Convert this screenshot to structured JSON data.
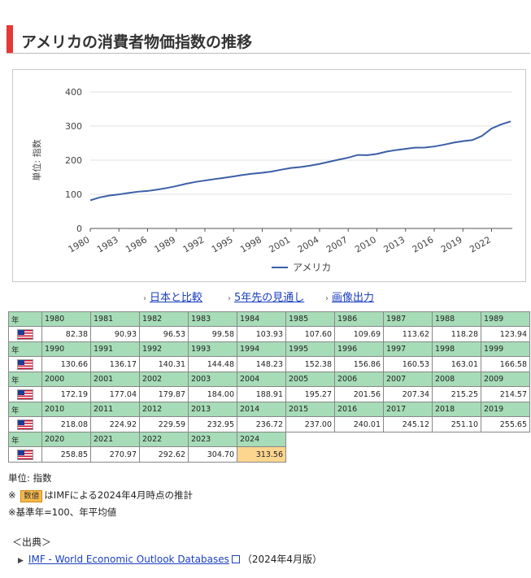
{
  "page": {
    "title": "アメリカの消費者物価指数の推移"
  },
  "chart_data": {
    "type": "line",
    "ylabel": "単位: 指数",
    "ylim": [
      0,
      400
    ],
    "yticks": [
      0,
      100,
      200,
      300,
      400
    ],
    "xlim": [
      1980,
      2024
    ],
    "xticks": [
      "1980",
      "1983",
      "1986",
      "1989",
      "1992",
      "1995",
      "1998",
      "2001",
      "2004",
      "2007",
      "2010",
      "2013",
      "2016",
      "2019",
      "2022"
    ],
    "grid": true,
    "legend": "bottom",
    "series": [
      {
        "name": "アメリカ",
        "color": "#3b5ea6",
        "x": [
          1980,
          1981,
          1982,
          1983,
          1984,
          1985,
          1986,
          1987,
          1988,
          1989,
          1990,
          1991,
          1992,
          1993,
          1994,
          1995,
          1996,
          1997,
          1998,
          1999,
          2000,
          2001,
          2002,
          2003,
          2004,
          2005,
          2006,
          2007,
          2008,
          2009,
          2010,
          2011,
          2012,
          2013,
          2014,
          2015,
          2016,
          2017,
          2018,
          2019,
          2020,
          2021,
          2022,
          2023,
          2024
        ],
        "values": [
          82.38,
          90.93,
          96.53,
          99.58,
          103.93,
          107.6,
          109.69,
          113.62,
          118.28,
          123.94,
          130.66,
          136.17,
          140.31,
          144.48,
          148.23,
          152.38,
          156.86,
          160.53,
          163.01,
          166.58,
          172.19,
          177.04,
          179.87,
          184.0,
          188.91,
          195.27,
          201.56,
          207.34,
          215.25,
          214.57,
          218.08,
          224.92,
          229.59,
          232.95,
          236.72,
          237.0,
          240.01,
          245.12,
          251.1,
          255.65,
          258.85,
          270.97,
          292.62,
          304.7,
          313.56
        ]
      }
    ]
  },
  "links": [
    {
      "label": "日本と比較"
    },
    {
      "label": "5年先の見通し"
    },
    {
      "label": "画像出力"
    }
  ],
  "table": {
    "year_header": "年",
    "rows": [
      {
        "years": [
          "1980",
          "1981",
          "1982",
          "1983",
          "1984",
          "1985",
          "1986",
          "1987",
          "1988",
          "1989"
        ],
        "values": [
          "82.38",
          "90.93",
          "96.53",
          "99.58",
          "103.93",
          "107.60",
          "109.69",
          "113.62",
          "118.28",
          "123.94"
        ]
      },
      {
        "years": [
          "1990",
          "1991",
          "1992",
          "1993",
          "1994",
          "1995",
          "1996",
          "1997",
          "1998",
          "1999"
        ],
        "values": [
          "130.66",
          "136.17",
          "140.31",
          "144.48",
          "148.23",
          "152.38",
          "156.86",
          "160.53",
          "163.01",
          "166.58"
        ]
      },
      {
        "years": [
          "2000",
          "2001",
          "2002",
          "2003",
          "2004",
          "2005",
          "2006",
          "2007",
          "2008",
          "2009"
        ],
        "values": [
          "172.19",
          "177.04",
          "179.87",
          "184.00",
          "188.91",
          "195.27",
          "201.56",
          "207.34",
          "215.25",
          "214.57"
        ]
      },
      {
        "years": [
          "2010",
          "2011",
          "2012",
          "2013",
          "2014",
          "2015",
          "2016",
          "2017",
          "2018",
          "2019"
        ],
        "values": [
          "218.08",
          "224.92",
          "229.59",
          "232.95",
          "236.72",
          "237.00",
          "240.01",
          "245.12",
          "251.10",
          "255.65"
        ]
      },
      {
        "years": [
          "2020",
          "2021",
          "2022",
          "2023",
          "2024"
        ],
        "values": [
          "258.85",
          "270.97",
          "292.62",
          "304.70",
          "313.56"
        ]
      }
    ],
    "estimate_year": "2024"
  },
  "notes": {
    "unit": "単位: 指数",
    "estimate_prefix": "※",
    "estimate_badge": "数値",
    "estimate_text": "はIMFによる2024年4月時点の推計",
    "base_note": "※基準年=100、年平均値"
  },
  "source": {
    "title": "＜出典＞",
    "link_label": "IMF - World Economic Outlook Databases",
    "edition": "（2024年4月版）"
  }
}
